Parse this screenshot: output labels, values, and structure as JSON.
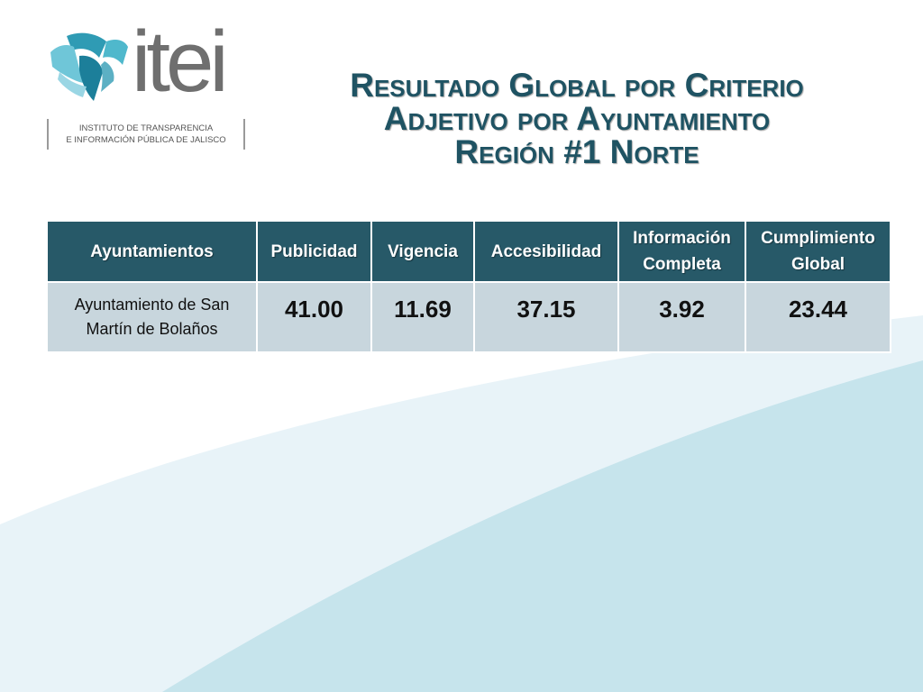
{
  "logo": {
    "wordmark": "itei",
    "subtitle_line1": "INSTITUTO DE TRANSPARENCIA",
    "subtitle_line2": "E INFORMACIÓN PÚBLICA DE JALISCO"
  },
  "title": {
    "line1": "Resultado Global por Criterio",
    "line2": "Adjetivo por Ayuntamiento",
    "line3": "Región #1 Norte"
  },
  "table": {
    "headers": {
      "ayuntamientos": "Ayuntamientos",
      "publicidad": "Publicidad",
      "vigencia": "Vigencia",
      "accesibilidad": "Accesibilidad",
      "informacion_line1": "Información",
      "informacion_line2": "Completa",
      "cumplimiento_line1": "Cumplimiento",
      "cumplimiento_line2": "Global"
    },
    "rows": [
      {
        "name_line1": "Ayuntamiento de San",
        "name_line2": "Martín de Bolaños",
        "publicidad": "41.00",
        "vigencia": "11.69",
        "accesibilidad": "37.15",
        "informacion_completa": "3.92",
        "cumplimiento_global": "23.44"
      }
    ]
  },
  "colors": {
    "header_bg": "#275968",
    "row_bg": "#c8d6dd",
    "title_color": "#1f5363",
    "wave_light": "#e6f2f7",
    "wave_mid": "#c6e4ec"
  }
}
